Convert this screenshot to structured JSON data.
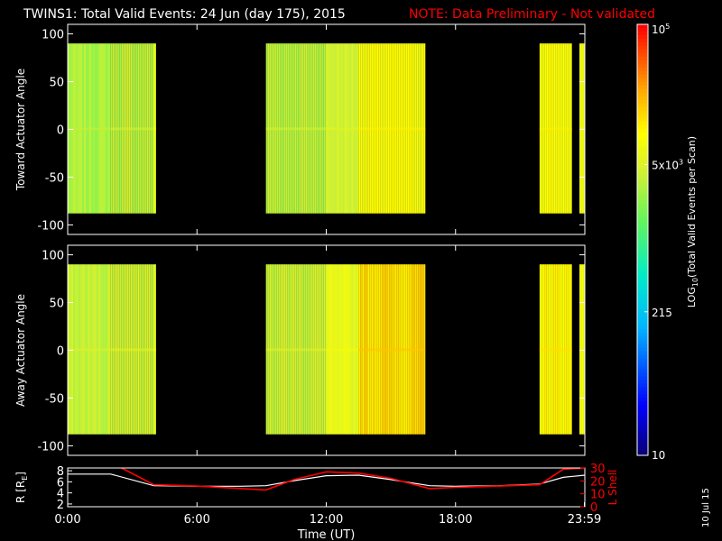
{
  "title": "TWINS1: Total Valid Events: 24 Jun (day 175), 2015",
  "note": "NOTE: Data Preliminary - Not validated",
  "footer_date": "10 Jul 15",
  "colors": {
    "background": "#000000",
    "note": "#ff0000",
    "axis": "#ffffff",
    "r_line": "#ffffff",
    "lshell_line": "#ff0000"
  },
  "colorbar": {
    "label": "LOG10(Total Valid Events per Scan)",
    "label_base": "LOG",
    "label_sub": "10",
    "label_rest": "(Total Valid Events per Scan)",
    "ticks": [
      {
        "value": 100000,
        "text": "10",
        "sup": "5"
      },
      {
        "value": 5000,
        "text": "5x10",
        "sup": "3"
      },
      {
        "value": 215,
        "text": "215",
        "sup": ""
      },
      {
        "value": 10,
        "text": "10",
        "sup": ""
      }
    ],
    "log_range": [
      1,
      5
    ]
  },
  "chart_data": [
    {
      "type": "heatmap",
      "ylabel": "Toward Actuator Angle",
      "ylim": [
        -110,
        110
      ],
      "yticks": [
        100,
        50,
        0,
        -50,
        -100
      ],
      "xlim": [
        0,
        24
      ],
      "angle_range": [
        -88,
        90
      ],
      "segments": [
        {
          "start": 0.0,
          "end": 2.0,
          "level": 3.48
        },
        {
          "start": 2.0,
          "end": 4.0,
          "level": 3.55
        },
        {
          "start": 4.0,
          "end": 4.1,
          "level": 3.85
        },
        {
          "start": 9.2,
          "end": 12.0,
          "level": 3.55
        },
        {
          "start": 12.0,
          "end": 13.5,
          "level": 3.65
        },
        {
          "start": 13.5,
          "end": 16.6,
          "level": 3.95
        },
        {
          "start": 21.9,
          "end": 23.4,
          "level": 3.95
        },
        {
          "start": 23.75,
          "end": 24.0,
          "level": 3.85
        }
      ]
    },
    {
      "type": "heatmap",
      "ylabel": "Away Actuator Angle",
      "ylim": [
        -110,
        110
      ],
      "yticks": [
        100,
        50,
        0,
        -50,
        -100
      ],
      "xlim": [
        0,
        24
      ],
      "angle_range": [
        -88,
        90
      ],
      "segments": [
        {
          "start": 0.0,
          "end": 2.0,
          "level": 3.58
        },
        {
          "start": 2.0,
          "end": 4.0,
          "level": 3.65
        },
        {
          "start": 4.0,
          "end": 4.1,
          "level": 3.9
        },
        {
          "start": 9.2,
          "end": 12.0,
          "level": 3.62
        },
        {
          "start": 12.0,
          "end": 13.5,
          "level": 3.78
        },
        {
          "start": 13.5,
          "end": 16.6,
          "level": 4.15
        },
        {
          "start": 21.9,
          "end": 23.4,
          "level": 4.02
        },
        {
          "start": 23.75,
          "end": 24.0,
          "level": 3.95
        }
      ]
    },
    {
      "type": "line",
      "ylabel_left": "R [RE]",
      "ylabel_left_base": "R [R",
      "ylabel_left_sub": "E",
      "ylabel_left_end": "]",
      "ylabel_right": "L Shell",
      "ylim_left": [
        1.5,
        8.5
      ],
      "yticks_left": [
        8,
        6,
        4,
        2
      ],
      "ylim_right": [
        0,
        30
      ],
      "yticks_right": [
        30,
        20,
        10,
        0
      ],
      "xlim": [
        0,
        24
      ],
      "xlabel": "Time (UT)",
      "xticks": [
        {
          "value": 0,
          "label": "0:00"
        },
        {
          "value": 6,
          "label": "6:00"
        },
        {
          "value": 12,
          "label": "12:00"
        },
        {
          "value": 18,
          "label": "18:00"
        },
        {
          "value": 23.98,
          "label": "23:59"
        }
      ],
      "series": [
        {
          "axis": "left",
          "color": "#ffffff",
          "x": [
            0,
            2,
            4,
            6,
            8,
            9.2,
            10.5,
            12,
            13.5,
            15,
            16.8,
            18,
            20,
            21.9,
            23,
            24
          ],
          "y": [
            7.4,
            7.4,
            5.3,
            5.2,
            5.2,
            5.3,
            6.2,
            7.1,
            7.2,
            6.4,
            5.3,
            5.2,
            5.3,
            5.6,
            6.8,
            7.2
          ]
        },
        {
          "axis": "right",
          "color": "#ff0000",
          "x": [
            2.5,
            4,
            6,
            9.2,
            10.5,
            12,
            13.5,
            15,
            16.8,
            18,
            20,
            21.9,
            23,
            24
          ],
          "y": [
            30,
            17,
            16,
            13,
            21,
            27,
            26,
            22,
            14,
            15,
            16,
            17,
            29,
            30
          ]
        }
      ]
    }
  ]
}
